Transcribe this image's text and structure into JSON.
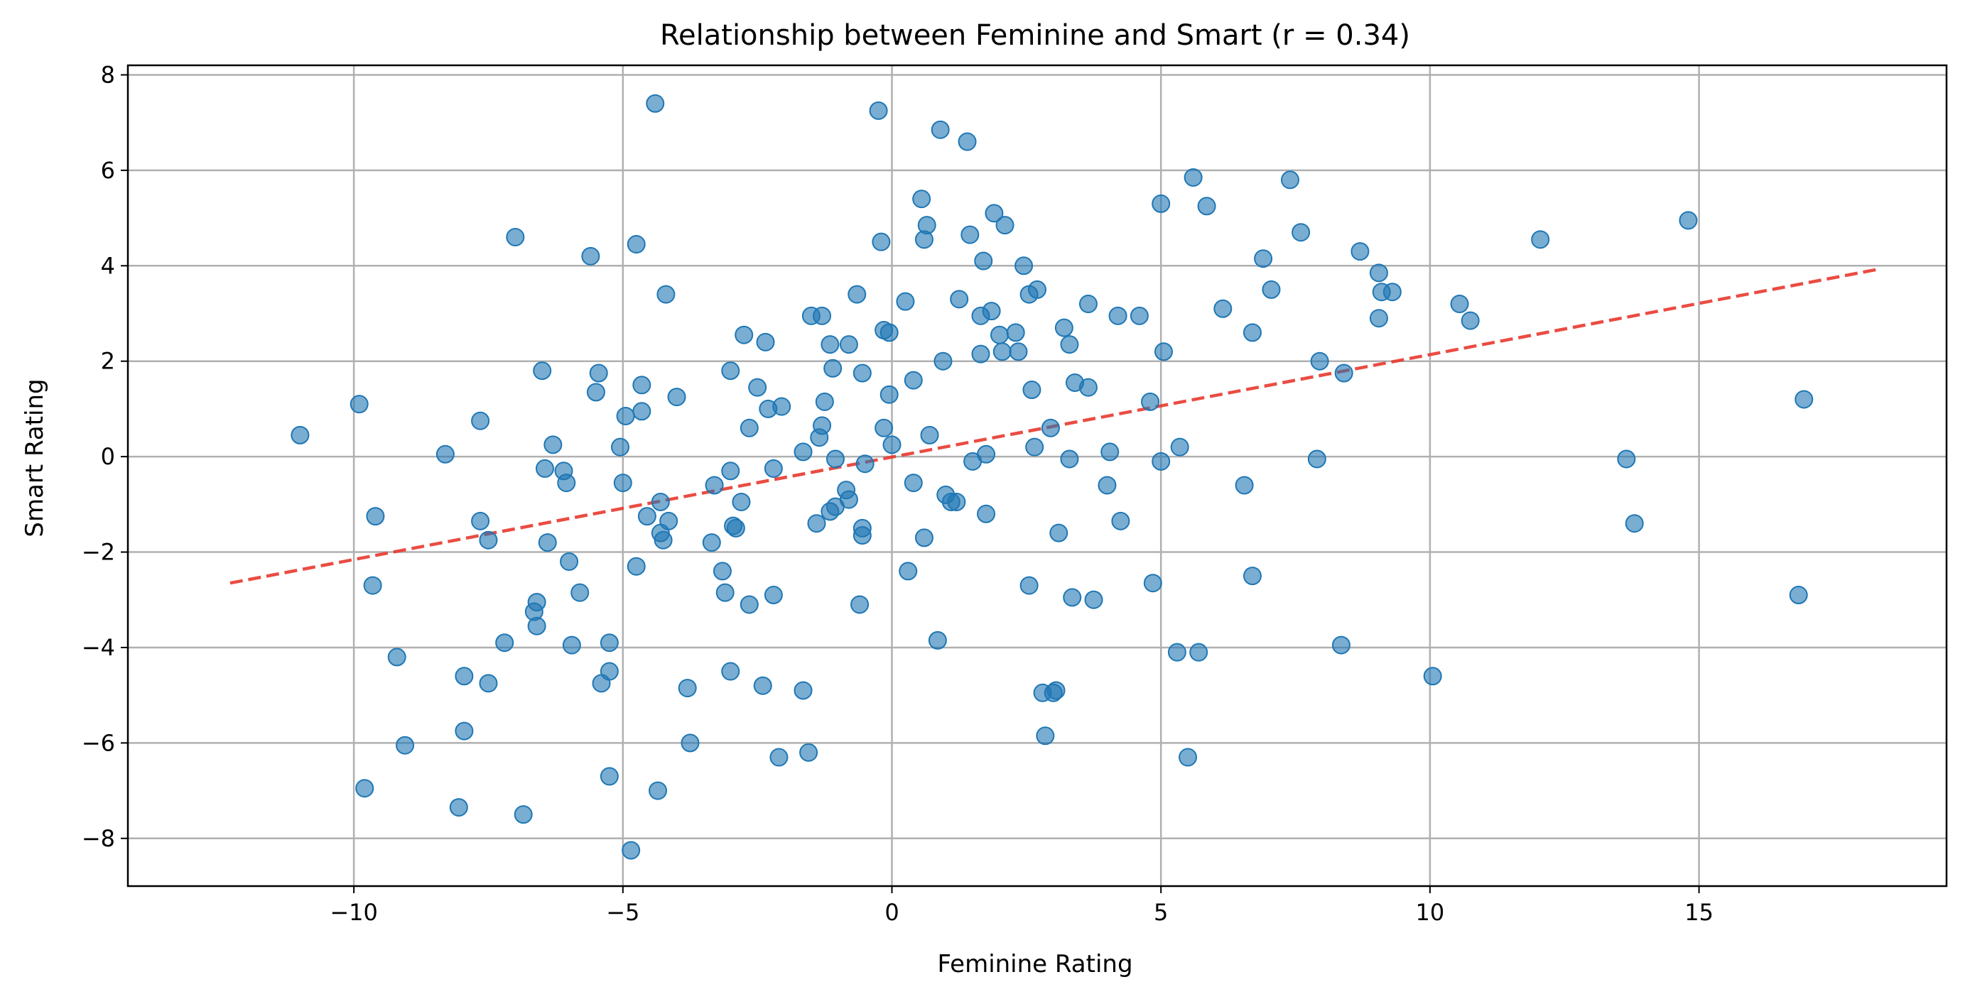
{
  "chart_data": {
    "type": "scatter",
    "title": "Relationship between Feminine and Smart (r = 0.34)",
    "xlabel": "Feminine Rating",
    "ylabel": "Smart Rating",
    "xlim": [
      -14.2,
      19.6
    ],
    "ylim": [
      -9.0,
      8.2
    ],
    "xticks": [
      -10,
      -5,
      0,
      5,
      10,
      15
    ],
    "xtick_labels": [
      "−10",
      "−5",
      "0",
      "5",
      "10",
      "15"
    ],
    "yticks": [
      -8,
      -6,
      -4,
      -2,
      0,
      2,
      4,
      6,
      8
    ],
    "ytick_labels": [
      "−8",
      "−6",
      "−4",
      "−2",
      "0",
      "2",
      "4",
      "6",
      "8"
    ],
    "grid": true,
    "colors": {
      "points": "#1f77b4",
      "trend": "#e8392e"
    },
    "trend_line": {
      "x": [
        -12.3,
        18.3
      ],
      "y": [
        -2.65,
        3.92
      ]
    },
    "points": [
      [
        -11.0,
        0.45
      ],
      [
        -9.9,
        1.1
      ],
      [
        -9.8,
        -6.95
      ],
      [
        -9.65,
        -2.7
      ],
      [
        -9.6,
        -1.25
      ],
      [
        -9.2,
        -4.2
      ],
      [
        -9.05,
        -6.05
      ],
      [
        -8.3,
        0.05
      ],
      [
        -8.05,
        -7.35
      ],
      [
        -7.95,
        -4.6
      ],
      [
        -7.95,
        -5.75
      ],
      [
        -7.65,
        0.75
      ],
      [
        -7.65,
        -1.35
      ],
      [
        -7.5,
        -4.75
      ],
      [
        -7.5,
        -1.75
      ],
      [
        -7.2,
        -3.9
      ],
      [
        -7.0,
        4.6
      ],
      [
        -6.85,
        -7.5
      ],
      [
        -6.65,
        -3.25
      ],
      [
        -6.6,
        -3.05
      ],
      [
        -6.6,
        -3.55
      ],
      [
        -6.5,
        1.8
      ],
      [
        -6.45,
        -0.25
      ],
      [
        -6.4,
        -1.8
      ],
      [
        -6.3,
        0.25
      ],
      [
        -6.1,
        -0.3
      ],
      [
        -6.05,
        -0.55
      ],
      [
        -6.0,
        -2.2
      ],
      [
        -5.95,
        -3.95
      ],
      [
        -5.8,
        -2.85
      ],
      [
        -5.6,
        4.2
      ],
      [
        -5.5,
        1.35
      ],
      [
        -5.45,
        1.75
      ],
      [
        -5.4,
        -4.75
      ],
      [
        -5.25,
        -4.5
      ],
      [
        -5.25,
        -3.9
      ],
      [
        -5.25,
        -6.7
      ],
      [
        -5.05,
        0.2
      ],
      [
        -5.0,
        -0.55
      ],
      [
        -4.95,
        0.85
      ],
      [
        -4.85,
        -8.25
      ],
      [
        -4.75,
        4.45
      ],
      [
        -4.75,
        -2.3
      ],
      [
        -4.65,
        0.95
      ],
      [
        -4.65,
        1.5
      ],
      [
        -4.55,
        -1.25
      ],
      [
        -4.4,
        7.4
      ],
      [
        -4.35,
        -7.0
      ],
      [
        -4.3,
        -0.95
      ],
      [
        -4.3,
        -1.6
      ],
      [
        -4.25,
        -1.75
      ],
      [
        -4.2,
        3.4
      ],
      [
        -4.15,
        -1.35
      ],
      [
        -4.0,
        1.25
      ],
      [
        -3.8,
        -4.85
      ],
      [
        -3.75,
        -6.0
      ],
      [
        -3.35,
        -1.8
      ],
      [
        -3.3,
        -0.6
      ],
      [
        -3.15,
        -2.4
      ],
      [
        -3.1,
        -2.85
      ],
      [
        -3.0,
        1.8
      ],
      [
        -3.0,
        -0.3
      ],
      [
        -3.0,
        -4.5
      ],
      [
        -2.95,
        -1.45
      ],
      [
        -2.9,
        -1.5
      ],
      [
        -2.8,
        -0.95
      ],
      [
        -2.75,
        2.55
      ],
      [
        -2.65,
        0.6
      ],
      [
        -2.65,
        -3.1
      ],
      [
        -2.5,
        1.45
      ],
      [
        -2.4,
        -4.8
      ],
      [
        -2.35,
        2.4
      ],
      [
        -2.3,
        1.0
      ],
      [
        -2.2,
        -0.25
      ],
      [
        -2.2,
        -2.9
      ],
      [
        -2.1,
        -6.3
      ],
      [
        -2.05,
        1.05
      ],
      [
        -1.65,
        0.1
      ],
      [
        -1.65,
        -4.9
      ],
      [
        -1.55,
        -6.2
      ],
      [
        -1.5,
        2.95
      ],
      [
        -1.4,
        -1.4
      ],
      [
        -1.35,
        0.4
      ],
      [
        -1.3,
        2.95
      ],
      [
        -1.3,
        0.65
      ],
      [
        -1.25,
        1.15
      ],
      [
        -1.15,
        2.35
      ],
      [
        -1.15,
        -1.15
      ],
      [
        -1.1,
        1.85
      ],
      [
        -1.05,
        -1.05
      ],
      [
        -1.05,
        -0.05
      ],
      [
        -0.85,
        -0.7
      ],
      [
        -0.8,
        -0.9
      ],
      [
        -0.8,
        2.35
      ],
      [
        -0.65,
        3.4
      ],
      [
        -0.6,
        -3.1
      ],
      [
        -0.55,
        1.75
      ],
      [
        -0.55,
        -1.5
      ],
      [
        -0.55,
        -1.65
      ],
      [
        -0.5,
        -0.15
      ],
      [
        -0.25,
        7.25
      ],
      [
        -0.2,
        4.5
      ],
      [
        -0.15,
        2.65
      ],
      [
        -0.15,
        0.6
      ],
      [
        -0.05,
        1.3
      ],
      [
        -0.05,
        2.6
      ],
      [
        0.0,
        0.25
      ],
      [
        0.25,
        3.25
      ],
      [
        0.3,
        -2.4
      ],
      [
        0.4,
        -0.55
      ],
      [
        0.4,
        1.6
      ],
      [
        0.55,
        5.4
      ],
      [
        0.6,
        4.55
      ],
      [
        0.6,
        -1.7
      ],
      [
        0.65,
        4.85
      ],
      [
        0.7,
        0.45
      ],
      [
        0.85,
        -3.85
      ],
      [
        0.9,
        6.85
      ],
      [
        0.95,
        2.0
      ],
      [
        1.0,
        -0.8
      ],
      [
        1.1,
        -0.95
      ],
      [
        1.2,
        -0.95
      ],
      [
        1.25,
        3.3
      ],
      [
        1.4,
        6.6
      ],
      [
        1.45,
        4.65
      ],
      [
        1.5,
        -0.1
      ],
      [
        1.65,
        2.95
      ],
      [
        1.65,
        2.15
      ],
      [
        1.7,
        4.1
      ],
      [
        1.75,
        0.05
      ],
      [
        1.75,
        -1.2
      ],
      [
        1.85,
        3.05
      ],
      [
        1.9,
        5.1
      ],
      [
        2.0,
        2.55
      ],
      [
        2.05,
        2.2
      ],
      [
        2.1,
        4.85
      ],
      [
        2.3,
        2.6
      ],
      [
        2.35,
        2.2
      ],
      [
        2.45,
        4.0
      ],
      [
        2.55,
        -2.7
      ],
      [
        2.55,
        3.4
      ],
      [
        2.6,
        1.4
      ],
      [
        2.65,
        0.2
      ],
      [
        2.7,
        3.5
      ],
      [
        2.8,
        -4.95
      ],
      [
        2.85,
        -5.85
      ],
      [
        2.95,
        0.6
      ],
      [
        3.0,
        -4.95
      ],
      [
        3.05,
        -4.9
      ],
      [
        3.1,
        -1.6
      ],
      [
        3.2,
        2.7
      ],
      [
        3.3,
        2.35
      ],
      [
        3.3,
        -0.05
      ],
      [
        3.35,
        -2.95
      ],
      [
        3.4,
        1.55
      ],
      [
        3.65,
        1.45
      ],
      [
        3.65,
        3.2
      ],
      [
        3.75,
        -3.0
      ],
      [
        4.0,
        -0.6
      ],
      [
        4.05,
        0.1
      ],
      [
        4.2,
        2.95
      ],
      [
        4.25,
        -1.35
      ],
      [
        4.6,
        2.95
      ],
      [
        4.8,
        1.15
      ],
      [
        4.85,
        -2.65
      ],
      [
        5.0,
        5.3
      ],
      [
        5.0,
        -0.1
      ],
      [
        5.05,
        2.2
      ],
      [
        5.3,
        -4.1
      ],
      [
        5.35,
        0.2
      ],
      [
        5.5,
        -6.3
      ],
      [
        5.6,
        5.85
      ],
      [
        5.7,
        -4.1
      ],
      [
        5.85,
        5.25
      ],
      [
        6.15,
        3.1
      ],
      [
        6.55,
        -0.6
      ],
      [
        6.7,
        2.6
      ],
      [
        6.7,
        -2.5
      ],
      [
        6.9,
        4.15
      ],
      [
        7.05,
        3.5
      ],
      [
        7.4,
        5.8
      ],
      [
        7.6,
        4.7
      ],
      [
        7.9,
        -0.05
      ],
      [
        7.95,
        2.0
      ],
      [
        8.35,
        -3.95
      ],
      [
        8.4,
        1.75
      ],
      [
        8.7,
        4.3
      ],
      [
        9.05,
        2.9
      ],
      [
        9.05,
        3.85
      ],
      [
        9.1,
        3.45
      ],
      [
        9.3,
        3.45
      ],
      [
        10.05,
        -4.6
      ],
      [
        10.55,
        3.2
      ],
      [
        10.75,
        2.85
      ],
      [
        12.05,
        4.55
      ],
      [
        13.65,
        -0.05
      ],
      [
        13.8,
        -1.4
      ],
      [
        14.8,
        4.95
      ],
      [
        16.85,
        -2.9
      ],
      [
        16.95,
        1.2
      ]
    ]
  }
}
